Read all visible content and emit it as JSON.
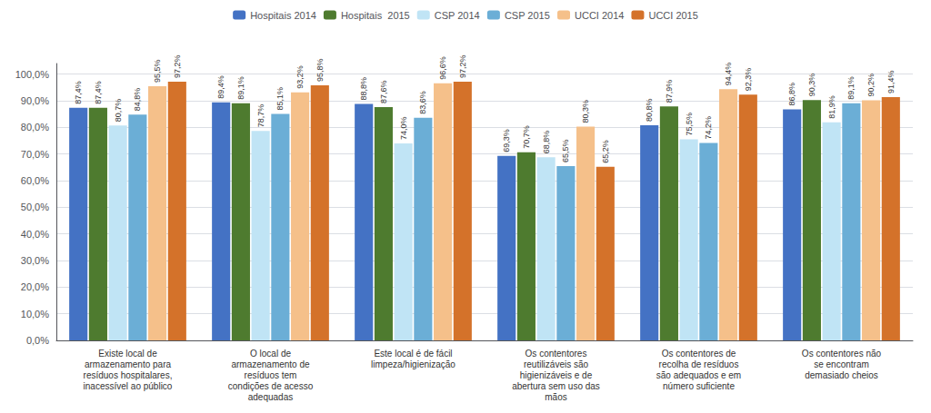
{
  "chart_data": {
    "type": "bar",
    "categories": [
      "Existe local de\narmazenamento para\nresíduos hospitalares,\ninacessível ao público",
      "O local de\narmazenamento de\nresíduos tem\ncondições de acesso\nadequadas",
      "Este local é de fácil\nlimpeza/higienização",
      "Os contentores\nreutilizáveis são\nhigienizáveis e de\nabertura sem uso das\nmãos",
      "Os contentores de\nrecolha de resíduos\nsão adequados e em\nnúmero suficiente",
      "Os contentores não\nse encontram\ndemasiado cheios"
    ],
    "series": [
      {
        "name": "Hospitais 2014",
        "color": "#4472C4",
        "values": [
          87.4,
          89.4,
          88.8,
          69.3,
          80.8,
          86.8
        ],
        "value_labels": [
          "87,4%",
          "89,4%",
          "88,8%",
          "69,3%",
          "80,8%",
          "86,8%"
        ]
      },
      {
        "name": "Hospitais  2015",
        "color": "#4E7B2F",
        "values": [
          87.4,
          89.1,
          87.6,
          70.7,
          87.9,
          90.3
        ],
        "value_labels": [
          "87,4%",
          "89,1%",
          "87,6%",
          "70,7%",
          "87,9%",
          "90,3%"
        ]
      },
      {
        "name": "CSP 2014",
        "color": "#C0E4F5",
        "values": [
          80.7,
          78.7,
          74.0,
          68.8,
          75.5,
          81.9
        ],
        "value_labels": [
          "80,7%",
          "78,7%",
          "74,0%",
          "68,8%",
          "75,5%",
          "81,9%"
        ]
      },
      {
        "name": "CSP 2015",
        "color": "#6BAED6",
        "values": [
          84.8,
          85.1,
          83.6,
          65.5,
          74.2,
          89.1
        ],
        "value_labels": [
          "84,8%",
          "85,1%",
          "83,6%",
          "65,5%",
          "74,2%",
          "89,1%"
        ]
      },
      {
        "name": "UCCI 2014",
        "color": "#F5C08A",
        "values": [
          95.5,
          93.2,
          96.6,
          80.3,
          94.4,
          90.2
        ],
        "value_labels": [
          "95,5%",
          "93,2%",
          "96,6%",
          "80,3%",
          "94,4%",
          "90,2%"
        ]
      },
      {
        "name": "UCCI 2015",
        "color": "#D4722A",
        "values": [
          97.2,
          95.8,
          97.2,
          65.2,
          92.3,
          91.4
        ],
        "value_labels": [
          "97,2%",
          "95,8%",
          "97,2%",
          "65,2%",
          "92,3%",
          "91,4%"
        ]
      }
    ],
    "ylim": [
      0,
      104
    ],
    "yticks": [
      {
        "value": 0,
        "label": "0,0%"
      },
      {
        "value": 10,
        "label": "10,0%"
      },
      {
        "value": 20,
        "label": "20,0%"
      },
      {
        "value": 30,
        "label": "30,0%"
      },
      {
        "value": 40,
        "label": "40,0%"
      },
      {
        "value": 50,
        "label": "50,0%"
      },
      {
        "value": 60,
        "label": "60,0%"
      },
      {
        "value": 70,
        "label": "70,0%"
      },
      {
        "value": 80,
        "label": "80,0%"
      },
      {
        "value": 90,
        "label": "90,0%"
      },
      {
        "value": 100,
        "label": "100,0%"
      }
    ],
    "grid": true,
    "legend": "top",
    "data_labels": true
  }
}
